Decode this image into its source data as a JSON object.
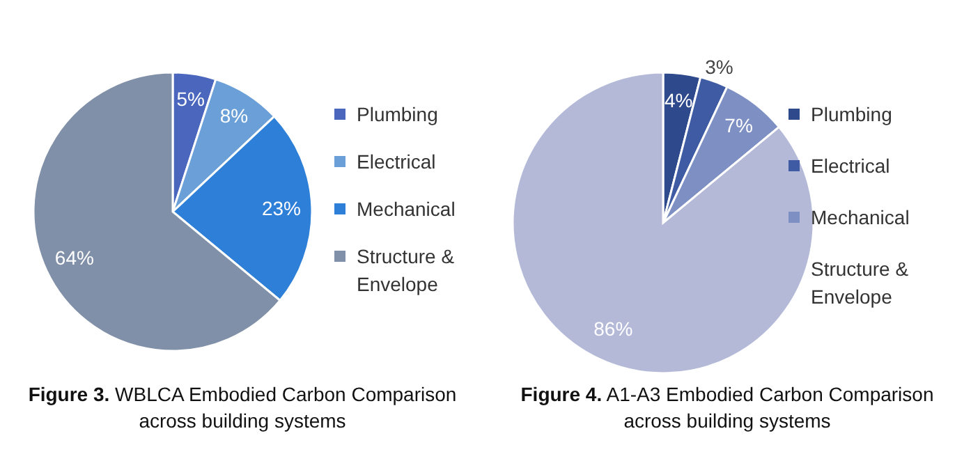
{
  "chart_data": [
    {
      "type": "pie",
      "title": "Figure 3.",
      "subtitle": "WBLCA Embodied Carbon Comparison across building systems",
      "categories": [
        "Plumbing",
        "Electrical",
        "Mechanical",
        "Structure & Envelope"
      ],
      "values": [
        5,
        8,
        23,
        64
      ],
      "value_labels": [
        "5%",
        "8%",
        "23%",
        "64%"
      ],
      "colors": [
        "#4a67bd",
        "#6a9fd8",
        "#2e7fd8",
        "#8090a8"
      ],
      "legend": "right"
    },
    {
      "type": "pie",
      "title": "Figure 4.",
      "subtitle": "A1-A3 Embodied Carbon Comparison across building systems",
      "categories": [
        "Plumbing",
        "Electrical",
        "Mechanical",
        "Structure & Envelope"
      ],
      "values": [
        4,
        3,
        7,
        86
      ],
      "value_labels": [
        "4%",
        "3%",
        "7%",
        "86%"
      ],
      "colors": [
        "#2f4a8c",
        "#3e5ba3",
        "#7e8fc4",
        "#b4b9d8"
      ],
      "legend": "right"
    }
  ]
}
